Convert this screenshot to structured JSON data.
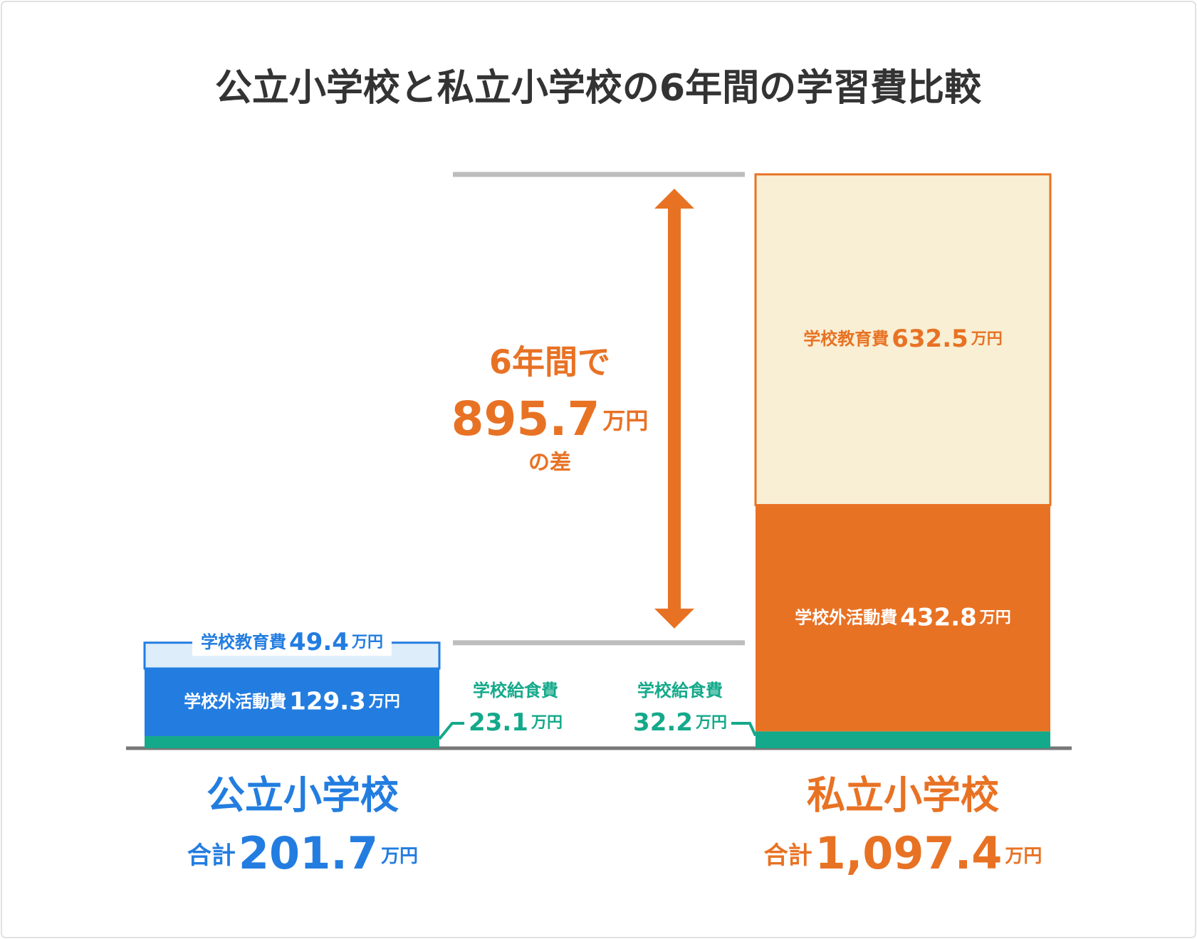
{
  "chart_data": {
    "type": "stacked_bar",
    "title": "公立小学校と私立小学校の6年間の学習費比較",
    "unit": "万円",
    "categories": [
      "公立小学校",
      "私立小学校"
    ],
    "category_colors": [
      "#237de0",
      "#e87224"
    ],
    "series": [
      {
        "name": "学校給食費",
        "color": "#14a98a",
        "colors": [
          "#14a98a",
          "#14a98a"
        ],
        "values": [
          23.1,
          32.2
        ]
      },
      {
        "name": "学校外活動費",
        "colors": [
          "#237de0",
          "#e87224"
        ],
        "values": [
          129.3,
          432.8
        ]
      },
      {
        "name": "学校教育費",
        "colors": [
          "#ddeefa",
          "#f8efd4"
        ],
        "values": [
          49.4,
          632.5
        ]
      }
    ],
    "totals": {
      "label": "合計",
      "values": [
        201.7,
        1097.4
      ],
      "value_labels": [
        "201.7",
        "1,097.4"
      ]
    },
    "difference": {
      "before": "6年間で",
      "value": 895.7,
      "after": "の差",
      "color": "#e87224"
    }
  }
}
